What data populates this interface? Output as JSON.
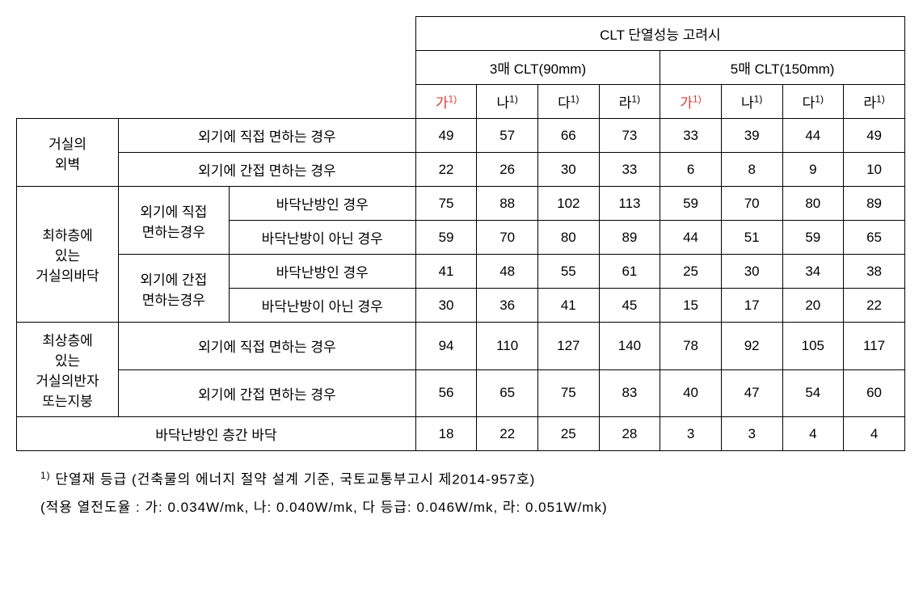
{
  "headers": {
    "main": "CLT 단열성능 고려시",
    "group1": "3매 CLT(90mm)",
    "group2": "5매 CLT(150mm)",
    "ga": "가",
    "na": "나",
    "da": "다",
    "ra": "라",
    "sup": "1)"
  },
  "rowLabels": {
    "r1": "거실의\n외벽",
    "r1a": "외기에 직접 면하는 경우",
    "r1b": "외기에   간접 면하는 경우",
    "r2": "최하층에\n있는\n거실의바닥",
    "r2a": "외기에   직접\n면하는경우",
    "r2b": "외기에 간접\n면하는경우",
    "r2a1": "바닥난방인 경우",
    "r2a2": "바닥난방이 아닌 경우",
    "r2b1": "바닥난방인 경우",
    "r2b2": "바닥난방이 아닌 경우",
    "r3": "최상층에\n있는\n거실의반자\n또는지붕",
    "r3a": "외기에 직접 면하는 경우",
    "r3b": "외기에   간접 면하는 경우",
    "r4": "바닥난방인 층간 바닥"
  },
  "data": {
    "row1": [
      "49",
      "57",
      "66",
      "73",
      "33",
      "39",
      "44",
      "49"
    ],
    "row2": [
      "22",
      "26",
      "30",
      "33",
      "6",
      "8",
      "9",
      "10"
    ],
    "row3": [
      "75",
      "88",
      "102",
      "113",
      "59",
      "70",
      "80",
      "89"
    ],
    "row4": [
      "59",
      "70",
      "80",
      "89",
      "44",
      "51",
      "59",
      "65"
    ],
    "row5": [
      "41",
      "48",
      "55",
      "61",
      "25",
      "30",
      "34",
      "38"
    ],
    "row6": [
      "30",
      "36",
      "41",
      "45",
      "15",
      "17",
      "20",
      "22"
    ],
    "row7": [
      "94",
      "110",
      "127",
      "140",
      "78",
      "92",
      "105",
      "117"
    ],
    "row8": [
      "56",
      "65",
      "75",
      "83",
      "40",
      "47",
      "54",
      "60"
    ],
    "row9": [
      "18",
      "22",
      "25",
      "28",
      "3",
      "3",
      "4",
      "4"
    ]
  },
  "footnote": {
    "line1_sup": "1)",
    "line1": " 단열재 등급 (건축물의 에너지 절약 설계 기준, 국토교통부고시 제2014-957호)",
    "line2": "(적용 열전도율 : 가: 0.034W/mk, 나: 0.040W/mk, 다 등급: 0.046W/mk, 라: 0.051W/mk)"
  },
  "colors": {
    "body_bg": "#ffffff",
    "text": "#000000",
    "border": "#000000",
    "highlight": "#e53935"
  },
  "typography": {
    "base_fontsize": 17,
    "sup_fontsize": 12,
    "font_family": "Malgun Gothic"
  }
}
